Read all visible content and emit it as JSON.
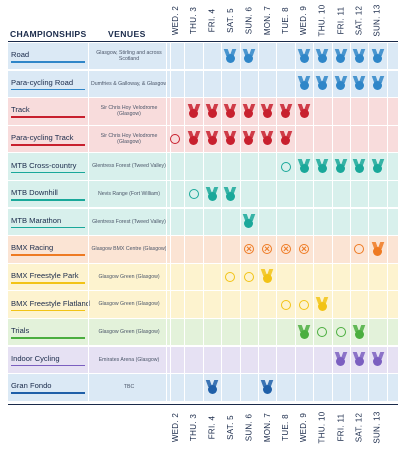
{
  "headers": {
    "championships": "CHAMPIONSHIPS",
    "venues": "VENUES"
  },
  "dates": [
    "WED. 2",
    "THU. 3",
    "FRI. 4",
    "SAT. 5",
    "SUN. 6",
    "MON. 7",
    "TUE. 8",
    "WED. 9",
    "THU. 10",
    "FRI. 11",
    "SAT. 12",
    "SUN. 13"
  ],
  "events": [
    {
      "name": "Road",
      "venue": "Glasgow, Stirling and across Scotland",
      "bg": "#dbe9f5",
      "accent": "#2f86c8",
      "cells": [
        "",
        "",
        "",
        "M",
        "M",
        "",
        "",
        "M",
        "M",
        "M",
        "M",
        "M"
      ]
    },
    {
      "name": "Para-cycling Road",
      "venue": "Dumfries & Galloway, & Glasgow",
      "bg": "#dbe9f5",
      "accent": "#2f86c8",
      "cells": [
        "",
        "",
        "",
        "",
        "",
        "",
        "",
        "M",
        "M",
        "M",
        "M",
        "M"
      ]
    },
    {
      "name": "Track",
      "venue": "Sir Chris Hoy Velodrome (Glasgow)",
      "bg": "#f8dcdc",
      "accent": "#c8202e",
      "cells": [
        "",
        "M",
        "M",
        "M",
        "M",
        "M",
        "M",
        "M",
        "",
        "",
        "",
        ""
      ]
    },
    {
      "name": "Para-cycling Track",
      "venue": "Sir Chris Hoy Velodrome (Glasgow)",
      "bg": "#f8dcdc",
      "accent": "#c8202e",
      "cells": [
        "R",
        "M",
        "M",
        "M",
        "M",
        "M",
        "M",
        "",
        "",
        "",
        "",
        ""
      ]
    },
    {
      "name": "MTB Cross-country",
      "venue": "Glentress Forest (Tweed Valley)",
      "bg": "#d8f0ec",
      "accent": "#1aa89a",
      "cells": [
        "",
        "",
        "",
        "",
        "",
        "",
        "R",
        "M",
        "M",
        "M",
        "M",
        "M"
      ]
    },
    {
      "name": "MTB Downhill",
      "venue": "Nevis Range (Fort William)",
      "bg": "#d8f0ec",
      "accent": "#1aa89a",
      "cells": [
        "",
        "R",
        "M",
        "M",
        "",
        "",
        "",
        "",
        "",
        "",
        "",
        ""
      ]
    },
    {
      "name": "MTB Marathon",
      "venue": "Glentress Forest (Tweed Valley)",
      "bg": "#d8f0ec",
      "accent": "#1aa89a",
      "cells": [
        "",
        "",
        "",
        "",
        "M",
        "",
        "",
        "",
        "",
        "",
        "",
        ""
      ]
    },
    {
      "name": "BMX Racing",
      "venue": "Glasgow BMX Centre (Glasgow)",
      "bg": "#fbe4d4",
      "accent": "#ee7a22",
      "cells": [
        "",
        "",
        "",
        "",
        "X",
        "X",
        "X",
        "X",
        "",
        "",
        "R",
        "M"
      ]
    },
    {
      "name": "BMX Freestyle Park",
      "venue": "Glasgow Green (Glasgow)",
      "bg": "#fdf3cf",
      "accent": "#f2c315",
      "cells": [
        "",
        "",
        "",
        "R",
        "R",
        "M",
        "",
        "",
        "",
        "",
        "",
        ""
      ]
    },
    {
      "name": "BMX Freestyle Flatland",
      "venue": "Glasgow Green (Glasgow)",
      "bg": "#fdf3cf",
      "accent": "#f2c315",
      "cells": [
        "",
        "",
        "",
        "",
        "",
        "",
        "R",
        "R",
        "M",
        "",
        "",
        ""
      ]
    },
    {
      "name": "Trials",
      "venue": "Glasgow Green (Glasgow)",
      "bg": "#e3f2da",
      "accent": "#4bae3f",
      "cells": [
        "",
        "",
        "",
        "",
        "",
        "",
        "",
        "M",
        "R",
        "R",
        "M",
        ""
      ]
    },
    {
      "name": "Indoor Cycling",
      "venue": "Emirates Arena (Glasgow)",
      "bg": "#e6e1f3",
      "accent": "#7b5fc0",
      "cells": [
        "",
        "",
        "",
        "",
        "",
        "",
        "",
        "",
        "",
        "M",
        "M",
        "M"
      ]
    },
    {
      "name": "Gran Fondo",
      "venue": "TBC",
      "bg": "#dbe9f5",
      "accent": "#1f5fa8",
      "cells": [
        "",
        "",
        "M",
        "",
        "",
        "M",
        "",
        "",
        "",
        "",
        "",
        ""
      ]
    }
  ]
}
